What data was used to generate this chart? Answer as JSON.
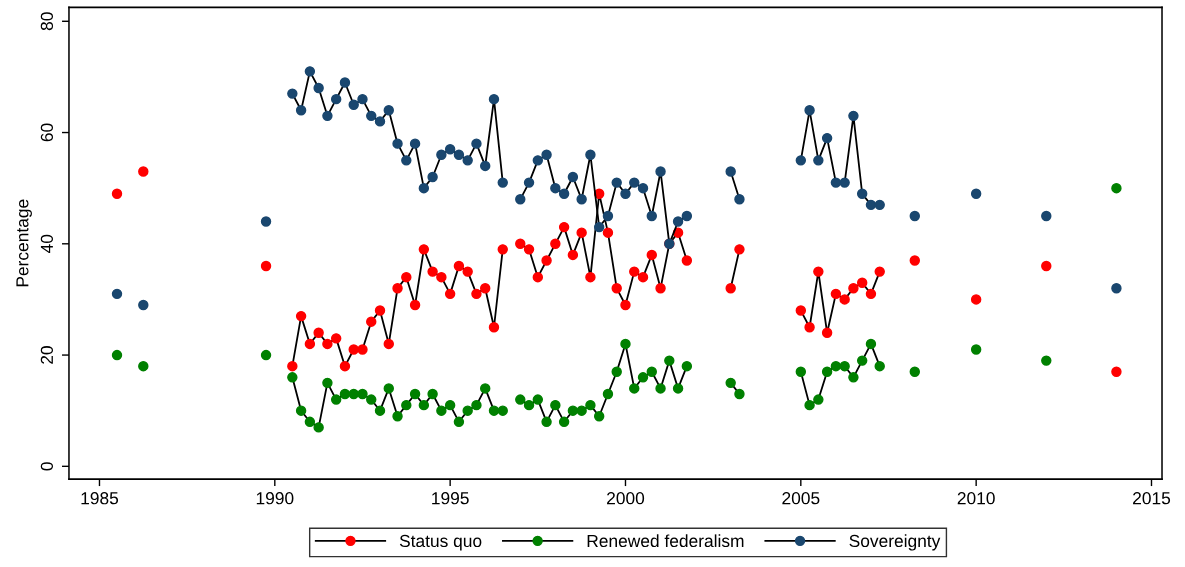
{
  "chart_data": {
    "type": "line",
    "ylabel": "Percentage",
    "x": [
      1985.5,
      1985.75,
      1986.25,
      1986.5,
      1989.75,
      1990.25,
      1990.5,
      1990.75,
      1991.0,
      1991.25,
      1991.5,
      1991.75,
      1992.0,
      1992.25,
      1992.5,
      1992.75,
      1993.0,
      1993.25,
      1993.5,
      1993.75,
      1994.0,
      1994.25,
      1994.5,
      1994.75,
      1995.0,
      1995.25,
      1995.5,
      1995.75,
      1996.0,
      1996.25,
      1996.5,
      1996.75,
      1997.0,
      1997.25,
      1997.5,
      1997.75,
      1998.0,
      1998.25,
      1998.5,
      1998.75,
      1999.0,
      1999.25,
      1999.5,
      1999.75,
      2000.0,
      2000.25,
      2000.5,
      2000.75,
      2001.0,
      2001.25,
      2001.5,
      2001.75,
      2002.0,
      2003.0,
      2003.25,
      2003.5,
      2005.0,
      2005.25,
      2005.5,
      2005.75,
      2006.0,
      2006.25,
      2006.5,
      2006.75,
      2007.0,
      2007.25,
      2007.5,
      2008.25,
      2008.5,
      2010.0,
      2010.25,
      2012.0,
      2012.25,
      2014.0
    ],
    "series": [
      {
        "name": "Status quo",
        "color": "#ff0000",
        "values": [
          49,
          null,
          53,
          null,
          36,
          null,
          18,
          27,
          22,
          24,
          22,
          23,
          18,
          21,
          21,
          26,
          28,
          22,
          32,
          34,
          29,
          39,
          35,
          34,
          31,
          36,
          35,
          31,
          32,
          25,
          39,
          null,
          40,
          39,
          34,
          37,
          40,
          43,
          38,
          42,
          34,
          49,
          42,
          32,
          29,
          35,
          34,
          38,
          32,
          40,
          42,
          37,
          null,
          32,
          39,
          null,
          28,
          25,
          35,
          24,
          31,
          30,
          32,
          33,
          31,
          35,
          null,
          37,
          null,
          30,
          null,
          36,
          null,
          17
        ]
      },
      {
        "name": "Renewed federalism",
        "color": "#008000",
        "values": [
          20,
          null,
          18,
          null,
          20,
          null,
          16,
          10,
          8,
          7,
          15,
          12,
          13,
          13,
          13,
          12,
          10,
          14,
          9,
          11,
          13,
          11,
          13,
          10,
          11,
          8,
          10,
          11,
          14,
          10,
          10,
          null,
          12,
          11,
          12,
          8,
          11,
          8,
          10,
          10,
          11,
          9,
          13,
          17,
          22,
          14,
          16,
          17,
          14,
          19,
          14,
          18,
          null,
          15,
          13,
          null,
          17,
          11,
          12,
          17,
          18,
          18,
          16,
          19,
          22,
          18,
          null,
          17,
          null,
          21,
          null,
          19,
          null,
          50
        ]
      },
      {
        "name": "Sovereignty",
        "color": "#1a476f",
        "values": [
          31,
          null,
          29,
          null,
          44,
          null,
          67,
          64,
          71,
          68,
          63,
          66,
          69,
          65,
          66,
          63,
          62,
          64,
          58,
          55,
          58,
          50,
          52,
          56,
          57,
          56,
          55,
          58,
          54,
          66,
          51,
          null,
          48,
          51,
          55,
          56,
          50,
          49,
          52,
          48,
          56,
          43,
          45,
          51,
          49,
          51,
          50,
          45,
          53,
          40,
          44,
          45,
          null,
          53,
          48,
          null,
          55,
          64,
          55,
          59,
          51,
          51,
          63,
          49,
          47,
          47,
          null,
          45,
          null,
          49,
          null,
          45,
          null,
          32
        ]
      }
    ],
    "xlim": [
      1984.13,
      2015.3
    ],
    "xticks": [
      1985,
      1990,
      1995,
      2000,
      2005,
      2010,
      2015
    ],
    "ylim": [
      -2.3,
      82.5
    ],
    "yticks": [
      0,
      20,
      40,
      60,
      80
    ],
    "marker": "circle",
    "line_style": "solid",
    "legend": "bottom"
  }
}
